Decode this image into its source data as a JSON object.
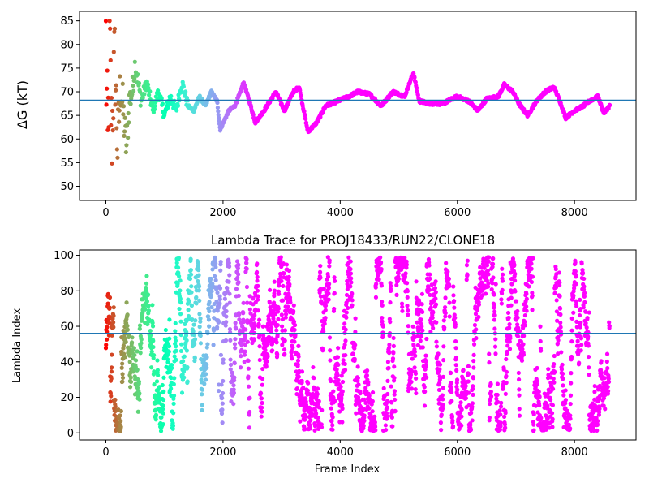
{
  "chart_data": [
    {
      "type": "scatter",
      "title": "",
      "xlabel": "",
      "ylabel": "ΔG (kT)",
      "xlim": [
        -450,
        9050
      ],
      "ylim": [
        47,
        87
      ],
      "xticks": [
        0,
        2000,
        4000,
        6000,
        8000
      ],
      "xtick_labels": [
        "0",
        "2000",
        "4000",
        "6000",
        "8000"
      ],
      "yticks": [
        50,
        55,
        60,
        65,
        70,
        75,
        80,
        85
      ],
      "ytick_labels": [
        "50",
        "55",
        "60",
        "65",
        "70",
        "75",
        "80",
        "85"
      ],
      "colormap": "rainbow (red at frame 0 → violet at later frames)",
      "grid": false,
      "hline": 68.2,
      "hline_color": "#1f77b4",
      "trace": [
        [
          0,
          80
        ],
        [
          30,
          55
        ],
        [
          60,
          82
        ],
        [
          100,
          60
        ],
        [
          150,
          78
        ],
        [
          200,
          58
        ],
        [
          250,
          72
        ],
        [
          300,
          65
        ],
        [
          350,
          58
        ],
        [
          400,
          68
        ],
        [
          450,
          70
        ],
        [
          500,
          76
        ],
        [
          600,
          68
        ],
        [
          700,
          72
        ],
        [
          800,
          66
        ],
        [
          900,
          70
        ],
        [
          1000,
          65
        ],
        [
          1100,
          69
        ],
        [
          1200,
          66
        ],
        [
          1300,
          72
        ],
        [
          1400,
          67
        ],
        [
          1500,
          66
        ],
        [
          1600,
          69
        ],
        [
          1700,
          67
        ],
        [
          1800,
          70
        ],
        [
          1900,
          68
        ],
        [
          1950,
          62
        ],
        [
          2100,
          66
        ],
        [
          2200,
          67
        ],
        [
          2300,
          70
        ],
        [
          2350,
          72
        ],
        [
          2450,
          68
        ],
        [
          2550,
          63.5
        ],
        [
          2700,
          66
        ],
        [
          2900,
          70
        ],
        [
          3050,
          66
        ],
        [
          3200,
          70
        ],
        [
          3300,
          71
        ],
        [
          3450,
          61.5
        ],
        [
          3600,
          63.5
        ],
        [
          3750,
          67
        ],
        [
          3950,
          68
        ],
        [
          4150,
          69
        ],
        [
          4300,
          70
        ],
        [
          4500,
          69.5
        ],
        [
          4700,
          67
        ],
        [
          4900,
          70
        ],
        [
          5100,
          69
        ],
        [
          5250,
          74
        ],
        [
          5350,
          68
        ],
        [
          5550,
          67.5
        ],
        [
          5750,
          67.5
        ],
        [
          6000,
          69
        ],
        [
          6200,
          68
        ],
        [
          6350,
          66
        ],
        [
          6500,
          68.5
        ],
        [
          6700,
          69
        ],
        [
          6800,
          71.5
        ],
        [
          6950,
          70
        ],
        [
          7050,
          67.5
        ],
        [
          7200,
          65
        ],
        [
          7350,
          68
        ],
        [
          7500,
          70
        ],
        [
          7650,
          71
        ],
        [
          7750,
          68
        ],
        [
          7850,
          64.5
        ],
        [
          8000,
          66
        ],
        [
          8150,
          67
        ],
        [
          8250,
          68
        ],
        [
          8400,
          69
        ],
        [
          8500,
          65.5
        ],
        [
          8600,
          67
        ]
      ]
    },
    {
      "type": "scatter",
      "title": "Lambda Trace for PROJ18433/RUN22/CLONE18",
      "xlabel": "Frame Index",
      "ylabel": "Lambda Index",
      "xlim": [
        -450,
        9050
      ],
      "ylim": [
        -4,
        103
      ],
      "xticks": [
        0,
        2000,
        4000,
        6000,
        8000
      ],
      "xtick_labels": [
        "0",
        "2000",
        "4000",
        "6000",
        "8000"
      ],
      "yticks": [
        0,
        20,
        40,
        60,
        80,
        100
      ],
      "ytick_labels": [
        "0",
        "20",
        "40",
        "60",
        "80",
        "100"
      ],
      "colormap": "rainbow (red at frame 0 → violet at later frames)",
      "grid": false,
      "hline": 56,
      "hline_color": "#1f77b4",
      "frame_range": [
        0,
        8600
      ],
      "lambda_range": [
        1,
        99
      ]
    }
  ]
}
